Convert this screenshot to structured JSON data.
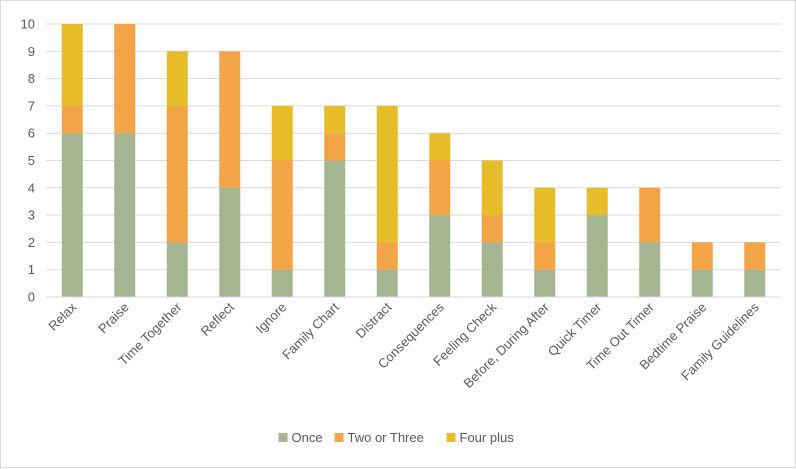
{
  "chart_data": {
    "type": "bar",
    "stacked": true,
    "title": "",
    "xlabel": "",
    "ylabel": "",
    "ylim": [
      0,
      10
    ],
    "yticks": [
      0,
      1,
      2,
      3,
      4,
      5,
      6,
      7,
      8,
      9,
      10
    ],
    "grid": true,
    "legend_position": "bottom",
    "categories": [
      "Relax",
      "Praise",
      "Time Together",
      "Reflect",
      "Ignore",
      "Family Chart",
      "Distract",
      "Consequences",
      "Feeling Check",
      "Before, During After",
      "Quick Timer",
      "Time Out Timer",
      "Bedtime Praise",
      "Family Guidelines"
    ],
    "series": [
      {
        "name": "Once",
        "color": "#a5b592",
        "values": [
          6,
          6,
          2,
          4,
          1,
          5,
          1,
          3,
          2,
          1,
          3,
          2,
          1,
          1
        ]
      },
      {
        "name": "Two or Three",
        "color": "#f3a447",
        "values": [
          1,
          4,
          5,
          5,
          4,
          1,
          1,
          2,
          1,
          1,
          0,
          2,
          1,
          1
        ]
      },
      {
        "name": "Four plus",
        "color": "#e7bc29",
        "values": [
          3,
          0,
          2,
          0,
          2,
          1,
          5,
          1,
          2,
          2,
          1,
          0,
          0,
          0
        ]
      }
    ]
  }
}
